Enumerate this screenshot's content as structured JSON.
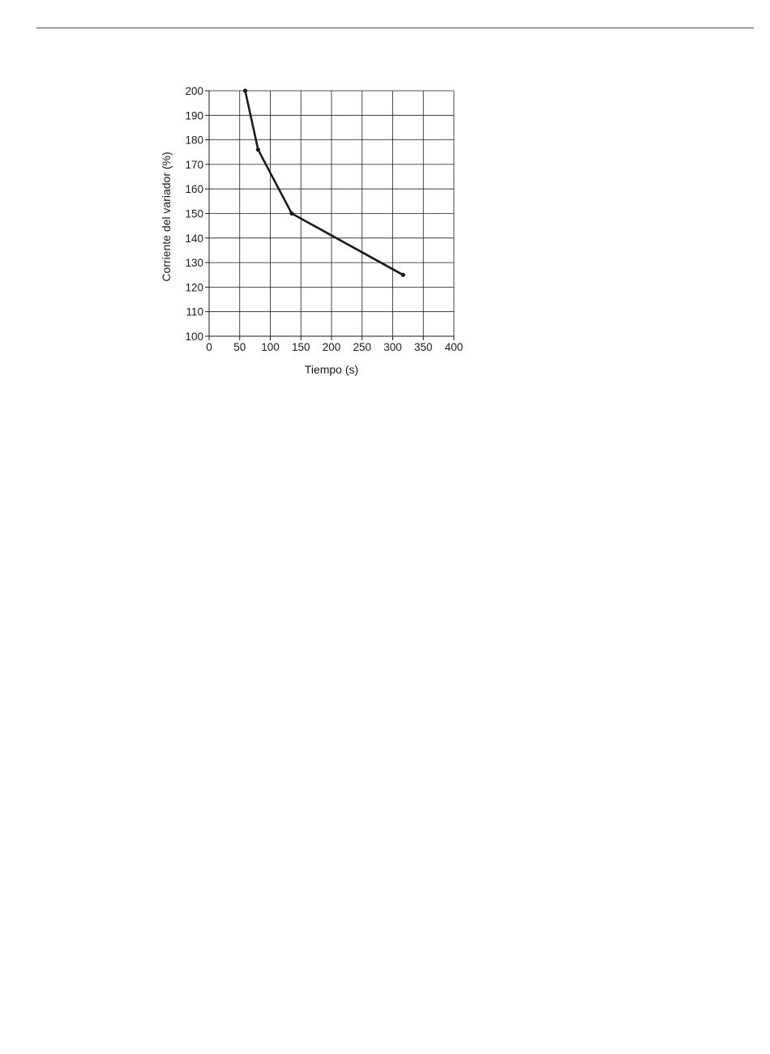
{
  "chart_data": {
    "type": "line",
    "title": "",
    "xlabel": "Tiempo (s)",
    "ylabel": "Corriente del variador (%)",
    "xlim": [
      0,
      400
    ],
    "ylim": [
      100,
      200
    ],
    "x_ticks": [
      0,
      50,
      100,
      150,
      200,
      250,
      300,
      350,
      400
    ],
    "y_ticks": [
      100,
      110,
      120,
      130,
      140,
      150,
      160,
      170,
      180,
      190,
      200
    ],
    "grid": true,
    "legend": "none",
    "series": [
      {
        "x": [
          59,
          80,
          135,
          317
        ],
        "y": [
          200,
          176,
          150,
          125
        ]
      }
    ],
    "colors": {
      "line": "#1a1a1a",
      "grid": "#1a1a1a"
    }
  }
}
